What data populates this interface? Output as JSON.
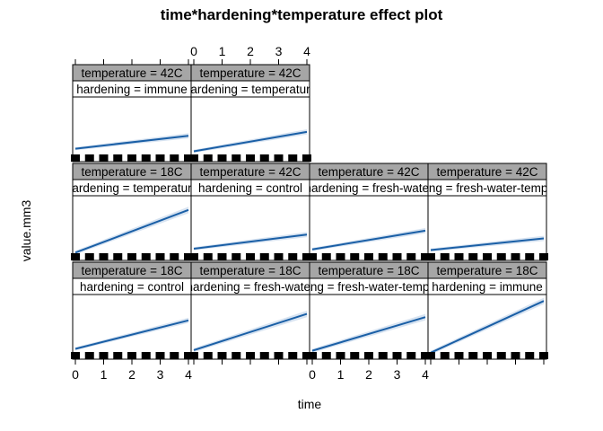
{
  "chart_data": {
    "type": "line",
    "title": "time*hardening*temperature effect plot",
    "xlabel": "time",
    "ylabel": "value.mm3",
    "xlim": [
      0,
      4
    ],
    "ylim": [
      0,
      1
    ],
    "x_ticks": [
      "0",
      "1",
      "2",
      "3",
      "4"
    ],
    "rug_x": [
      0,
      0.5,
      1,
      1.5,
      2,
      2.5,
      3,
      3.5,
      4
    ],
    "panels": [
      {
        "row": 0,
        "col": 0,
        "temperature": "temperature = 42C",
        "hardening": "hardening = immune",
        "y": [
          0.2,
          0.4
        ],
        "band": 0.04
      },
      {
        "row": 0,
        "col": 1,
        "temperature": "temperature = 42C",
        "hardening": "hardening = temperature",
        "y": [
          0.16,
          0.46
        ],
        "band": 0.04
      },
      {
        "row": 1,
        "col": 0,
        "temperature": "temperature = 18C",
        "hardening": "hardening = temperature",
        "y": [
          0.12,
          0.78
        ],
        "band": 0.05
      },
      {
        "row": 1,
        "col": 1,
        "temperature": "temperature = 42C",
        "hardening": "hardening = control",
        "y": [
          0.18,
          0.4
        ],
        "band": 0.04
      },
      {
        "row": 1,
        "col": 2,
        "temperature": "temperature = 42C",
        "hardening": "hardening = fresh-water",
        "y": [
          0.17,
          0.46
        ],
        "band": 0.04
      },
      {
        "row": 1,
        "col": 3,
        "temperature": "temperature = 42C",
        "hardening": "hardening = fresh-water-temperature",
        "y": [
          0.16,
          0.34
        ],
        "band": 0.04
      },
      {
        "row": 2,
        "col": 0,
        "temperature": "temperature = 18C",
        "hardening": "hardening = control",
        "y": [
          0.16,
          0.6
        ],
        "band": 0.04
      },
      {
        "row": 2,
        "col": 1,
        "temperature": "temperature = 18C",
        "hardening": "hardening = fresh-water",
        "y": [
          0.14,
          0.7
        ],
        "band": 0.05
      },
      {
        "row": 2,
        "col": 2,
        "temperature": "temperature = 18C",
        "hardening": "hardening = fresh-water-temperature",
        "y": [
          0.13,
          0.65
        ],
        "band": 0.05
      },
      {
        "row": 2,
        "col": 3,
        "temperature": "temperature = 18C",
        "hardening": "hardening = immune",
        "y": [
          0.1,
          0.9
        ],
        "band": 0.05
      }
    ],
    "grid": false
  }
}
